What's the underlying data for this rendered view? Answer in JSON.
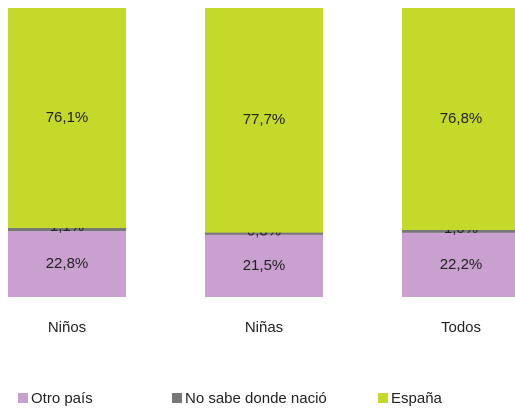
{
  "chart_data": {
    "type": "stacked-bar",
    "categories": [
      "Niños",
      "Niñas",
      "Todos"
    ],
    "series": [
      {
        "name": "Otro país",
        "color": "#c9a0d0",
        "values": [
          22.8,
          21.5,
          22.2
        ],
        "value_labels": [
          "22,8%",
          "21,5%",
          "22,2%"
        ]
      },
      {
        "name": "No sabe donde nació",
        "color": "#777777",
        "values": [
          1.1,
          0.8,
          1.0
        ],
        "value_labels": [
          "1,1%",
          "0,8%",
          "1,0%"
        ]
      },
      {
        "name": "España",
        "color": "#c5d92a",
        "values": [
          76.1,
          77.7,
          76.8
        ],
        "value_labels": [
          "76,1%",
          "77,7%",
          "76,8%"
        ]
      }
    ],
    "legend": "bottom"
  }
}
